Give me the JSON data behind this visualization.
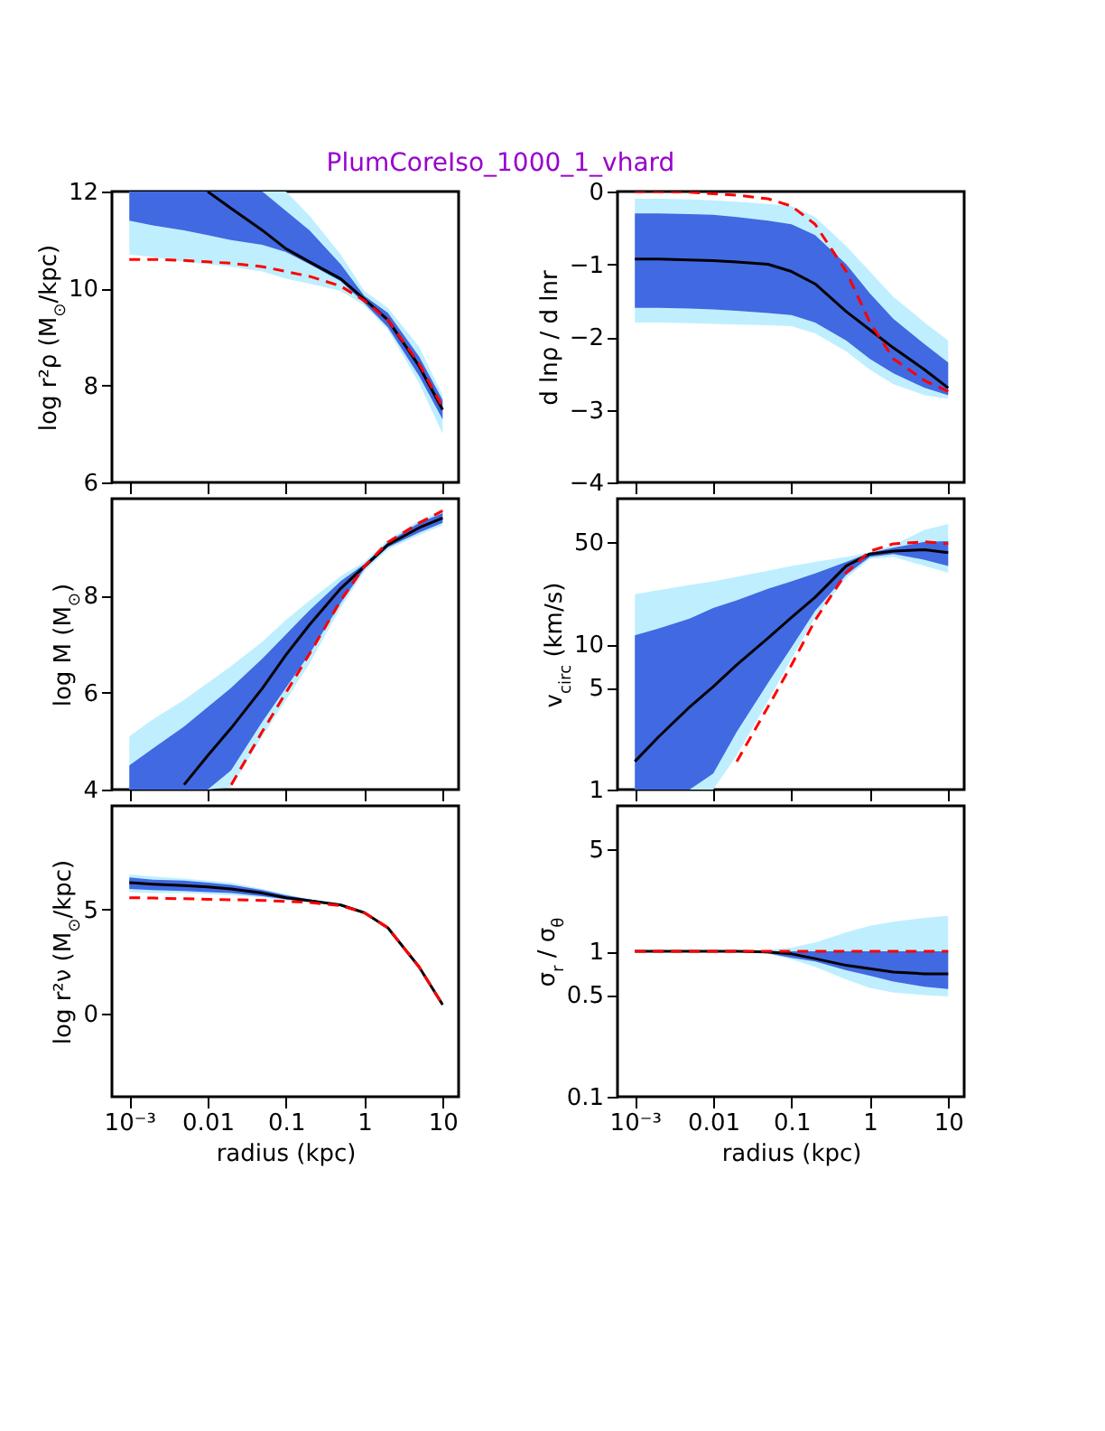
{
  "chart_data": [
    {
      "type": "line",
      "title": "PlumCoreIso_1000_1_vhard",
      "ylabel": "log r²ρ (M$_{⊙}$/kpc)",
      "log": "x",
      "tick_labels": "y",
      "marker": "none",
      "x": [
        0.001,
        0.002,
        0.005,
        0.01,
        0.02,
        0.05,
        0.1,
        0.2,
        0.5,
        1,
        2,
        5,
        10
      ],
      "xlim": [
        0.0006,
        16
      ],
      "xticks": [
        0.001,
        0.01,
        0.1,
        1,
        10
      ],
      "ylim": [
        6,
        12
      ],
      "yticks": [
        6,
        8,
        10,
        12
      ],
      "series": [
        {
          "color": "#bfefff",
          "values": [
            null,
            null,
            null,
            null,
            null,
            null,
            null,
            null,
            null,
            null,
            null,
            null,
            null
          ],
          "lower": [
            10.7,
            10.65,
            10.55,
            10.5,
            10.45,
            10.35,
            10.2,
            10.1,
            9.95,
            9.65,
            9.15,
            8.05,
            7.0
          ],
          "upper": [
            12,
            12,
            12,
            12,
            12,
            12,
            12,
            11.5,
            10.7,
            9.95,
            9.6,
            8.8,
            7.8
          ]
        },
        {
          "color": "#4169e1",
          "values": [
            null,
            null,
            null,
            null,
            null,
            null,
            null,
            null,
            null,
            null,
            null,
            null,
            null
          ],
          "lower": [
            11.4,
            11.3,
            11.2,
            11.1,
            11.0,
            10.9,
            10.75,
            10.5,
            10.15,
            9.7,
            9.2,
            8.2,
            7.3
          ],
          "upper": [
            12,
            12,
            12,
            12,
            12,
            12,
            11.6,
            11.2,
            10.5,
            9.85,
            9.5,
            8.6,
            7.7
          ]
        },
        {
          "type": "line",
          "color": "#000000",
          "line_style": "solid",
          "values": [
            null,
            null,
            null,
            12.0,
            11.65,
            11.2,
            10.82,
            10.55,
            10.2,
            9.78,
            9.35,
            8.4,
            7.5
          ]
        },
        {
          "type": "line",
          "color": "#ff0000",
          "line_style": "dashed",
          "values": [
            10.6,
            10.6,
            10.58,
            10.55,
            10.52,
            10.45,
            10.35,
            10.25,
            10.05,
            9.75,
            9.35,
            8.45,
            7.55
          ]
        }
      ]
    },
    {
      "type": "line",
      "ylabel": "d lnρ / d lnr",
      "log": "x",
      "tick_labels": "y",
      "marker": "none",
      "x": [
        0.001,
        0.002,
        0.005,
        0.01,
        0.02,
        0.05,
        0.1,
        0.2,
        0.5,
        1,
        2,
        5,
        10
      ],
      "xlim": [
        0.0006,
        16
      ],
      "xticks": [
        0.001,
        0.01,
        0.1,
        1,
        10
      ],
      "ylim": [
        -4,
        0
      ],
      "yticks": [
        -4,
        -3,
        -2,
        -1,
        0
      ],
      "series": [
        {
          "color": "#bfefff",
          "values": [
            null,
            null,
            null,
            null,
            null,
            null,
            null,
            null,
            null,
            null,
            null,
            null,
            null
          ],
          "lower": [
            -1.8,
            -1.8,
            -1.81,
            -1.82,
            -1.83,
            -1.84,
            -1.85,
            -1.95,
            -2.2,
            -2.45,
            -2.65,
            -2.8,
            -2.85
          ],
          "upper": [
            -0.1,
            -0.1,
            -0.11,
            -0.12,
            -0.14,
            -0.17,
            -0.2,
            -0.35,
            -0.75,
            -1.1,
            -1.45,
            -1.8,
            -2.05
          ]
        },
        {
          "color": "#4169e1",
          "values": [
            null,
            null,
            null,
            null,
            null,
            null,
            null,
            null,
            null,
            null,
            null,
            null,
            null
          ],
          "lower": [
            -1.6,
            -1.6,
            -1.61,
            -1.62,
            -1.64,
            -1.67,
            -1.7,
            -1.8,
            -2.05,
            -2.3,
            -2.5,
            -2.7,
            -2.8
          ],
          "upper": [
            -0.3,
            -0.3,
            -0.31,
            -0.32,
            -0.35,
            -0.4,
            -0.45,
            -0.6,
            -1.0,
            -1.4,
            -1.75,
            -2.1,
            -2.35
          ]
        },
        {
          "type": "line",
          "color": "#000000",
          "line_style": "solid",
          "values": [
            -0.93,
            -0.93,
            -0.94,
            -0.95,
            -0.97,
            -1.0,
            -1.1,
            -1.27,
            -1.65,
            -1.9,
            -2.15,
            -2.45,
            -2.7
          ]
        },
        {
          "type": "line",
          "color": "#ff0000",
          "line_style": "dashed",
          "values": [
            0,
            0,
            -0.01,
            -0.03,
            -0.05,
            -0.1,
            -0.2,
            -0.45,
            -1.1,
            -1.8,
            -2.3,
            -2.6,
            -2.75
          ]
        }
      ]
    },
    {
      "type": "line",
      "ylabel": "log M (M$_{⊙}$)",
      "log": "x",
      "tick_labels": "y",
      "marker": "none",
      "x": [
        0.001,
        0.002,
        0.005,
        0.01,
        0.02,
        0.05,
        0.1,
        0.2,
        0.5,
        1,
        2,
        5,
        10
      ],
      "xlim": [
        0.0006,
        16
      ],
      "xticks": [
        0.001,
        0.01,
        0.1,
        1,
        10
      ],
      "ylim": [
        4,
        10
      ],
      "yticks": [
        4,
        6,
        8
      ],
      "series": [
        {
          "color": "#bfefff",
          "values": [
            null,
            null,
            null,
            null,
            null,
            null,
            null,
            null,
            null,
            null,
            null,
            null,
            null
          ],
          "lower": [
            4,
            4,
            4,
            4,
            4.05,
            5.1,
            5.85,
            6.6,
            7.75,
            8.5,
            8.95,
            9.25,
            9.45
          ],
          "upper": [
            5.1,
            5.45,
            5.85,
            6.2,
            6.55,
            7.05,
            7.5,
            7.9,
            8.4,
            8.7,
            9.15,
            9.55,
            9.75
          ]
        },
        {
          "color": "#4169e1",
          "values": [
            null,
            null,
            null,
            null,
            null,
            null,
            null,
            null,
            null,
            null,
            null,
            null,
            null
          ],
          "lower": [
            4,
            4,
            4,
            4,
            4.4,
            5.4,
            6.1,
            6.8,
            7.85,
            8.55,
            9.0,
            9.3,
            9.5
          ],
          "upper": [
            4.5,
            4.85,
            5.3,
            5.7,
            6.1,
            6.7,
            7.2,
            7.7,
            8.3,
            8.65,
            9.1,
            9.5,
            9.7
          ]
        },
        {
          "type": "line",
          "color": "#000000",
          "line_style": "solid",
          "values": [
            null,
            null,
            4.1,
            4.7,
            5.27,
            6.09,
            6.78,
            7.4,
            8.15,
            8.6,
            9.05,
            9.4,
            9.6
          ]
        },
        {
          "type": "line",
          "color": "#ff0000",
          "line_style": "dashed",
          "values": [
            null,
            null,
            null,
            null,
            4.1,
            5.2,
            6.0,
            6.8,
            7.9,
            8.6,
            9.1,
            9.5,
            9.75
          ]
        }
      ]
    },
    {
      "type": "line",
      "ylabel": "v$_{circ}$ (km/s)",
      "log": "xy",
      "tick_labels": "y",
      "marker": "none",
      "x": [
        0.001,
        0.002,
        0.005,
        0.01,
        0.02,
        0.05,
        0.1,
        0.2,
        0.5,
        1,
        2,
        5,
        10
      ],
      "xlim": [
        0.0006,
        16
      ],
      "xticks": [
        0.001,
        0.01,
        0.1,
        1,
        10
      ],
      "ylim": [
        1,
        100
      ],
      "yticks": [
        1,
        5,
        10,
        50
      ],
      "series": [
        {
          "color": "#bfefff",
          "values": [
            null,
            null,
            null,
            null,
            null,
            null,
            null,
            null,
            null,
            null,
            null,
            null,
            null
          ],
          "lower": [
            1,
            1,
            1,
            1,
            1.72,
            4.05,
            7.9,
            15.3,
            28.4,
            38.5,
            39.7,
            34.5,
            31
          ],
          "upper": [
            22,
            23.5,
            25.5,
            27,
            29,
            32,
            34.5,
            36.7,
            39.7,
            42.8,
            48,
            61,
            67
          ]
        },
        {
          "color": "#4169e1",
          "values": [
            null,
            null,
            null,
            null,
            null,
            null,
            null,
            null,
            null,
            null,
            null,
            null,
            null
          ],
          "lower": [
            1,
            1,
            1,
            1.29,
            2.5,
            5.4,
            9.5,
            16.9,
            30,
            39.7,
            41.7,
            38,
            34.5
          ],
          "upper": [
            11.5,
            12.8,
            15,
            17.7,
            20,
            24,
            27,
            30.6,
            36.7,
            42.5,
            46,
            50.5,
            51
          ]
        },
        {
          "type": "line",
          "color": "#000000",
          "line_style": "solid",
          "values": [
            1.56,
            2.3,
            3.7,
            5.1,
            7.2,
            11,
            15.3,
            21,
            34.5,
            41.7,
            43.6,
            44.6,
            42.5
          ]
        },
        {
          "type": "line",
          "color": "#ff0000",
          "line_style": "dashed",
          "values": [
            null,
            null,
            null,
            null,
            1.56,
            3.7,
            7.2,
            14.6,
            31,
            43.6,
            49,
            50.5,
            49
          ]
        }
      ]
    },
    {
      "type": "line",
      "ylabel": "log r²ν (M$_{⊙}$/kpc)",
      "xlabel": "radius (kpc)",
      "log": "x",
      "marker": "none",
      "x": [
        0.001,
        0.002,
        0.005,
        0.01,
        0.02,
        0.05,
        0.1,
        0.2,
        0.5,
        1,
        2,
        5,
        10
      ],
      "xlim": [
        0.0006,
        16
      ],
      "xticks": [
        {
          "value": 0.001,
          "label": "10⁻³"
        },
        0.01,
        0.1,
        1,
        10
      ],
      "ylim": [
        -4,
        10
      ],
      "yticks": [
        0,
        5
      ],
      "series": [
        {
          "color": "#bfefff",
          "values": [
            null,
            null,
            null,
            null,
            null,
            null,
            null,
            null,
            null,
            null,
            null,
            null,
            null
          ],
          "lower": [
            5.85,
            5.8,
            5.8,
            5.75,
            5.7,
            5.6,
            5.45,
            5.35,
            5.2,
            4.8,
            4.1,
            2.2,
            0.4
          ],
          "upper": [
            6.7,
            6.6,
            6.5,
            6.4,
            6.3,
            6.0,
            5.75,
            5.5,
            5.3,
            4.9,
            4.2,
            2.3,
            0.5
          ]
        },
        {
          "color": "#4169e1",
          "values": [
            null,
            null,
            null,
            null,
            null,
            null,
            null,
            null,
            null,
            null,
            null,
            null,
            null
          ],
          "lower": [
            6.0,
            5.95,
            5.9,
            5.85,
            5.8,
            5.65,
            5.5,
            5.4,
            5.2,
            4.8,
            4.1,
            2.2,
            0.4
          ],
          "upper": [
            6.55,
            6.45,
            6.4,
            6.3,
            6.2,
            5.95,
            5.7,
            5.5,
            5.25,
            4.9,
            4.15,
            2.3,
            0.45
          ]
        },
        {
          "type": "line",
          "color": "#000000",
          "line_style": "solid",
          "values": [
            6.3,
            6.23,
            6.16,
            6.1,
            6.0,
            5.8,
            5.58,
            5.43,
            5.23,
            4.86,
            4.13,
            2.25,
            0.43
          ]
        },
        {
          "type": "line",
          "color": "#ff0000",
          "line_style": "dashed",
          "values": [
            5.58,
            5.56,
            5.53,
            5.5,
            5.48,
            5.45,
            5.4,
            5.35,
            5.2,
            4.86,
            4.13,
            2.25,
            0.43
          ]
        }
      ]
    },
    {
      "type": "line",
      "ylabel": "σ$_{r}$ / σ$_{θ}$",
      "xlabel": "radius (kpc)",
      "log": "xy",
      "marker": "none",
      "x": [
        0.001,
        0.002,
        0.005,
        0.01,
        0.02,
        0.05,
        0.1,
        0.2,
        0.5,
        1,
        2,
        5,
        10
      ],
      "xlim": [
        0.0006,
        16
      ],
      "xticks": [
        {
          "value": 0.001,
          "label": "10⁻³"
        },
        0.01,
        0.1,
        1,
        10
      ],
      "ylim": [
        0.1,
        10
      ],
      "yticks": [
        0.1,
        0.5,
        1,
        5
      ],
      "series": [
        {
          "color": "#bfefff",
          "values": [
            null,
            null,
            null,
            null,
            null,
            null,
            null,
            null,
            null,
            null,
            null,
            null,
            null
          ],
          "lower": [
            1,
            1,
            1,
            1,
            0.99,
            0.96,
            0.88,
            0.78,
            0.64,
            0.56,
            0.52,
            0.5,
            0.49
          ],
          "upper": [
            1,
            1,
            1,
            1,
            1.01,
            1.02,
            1.06,
            1.15,
            1.35,
            1.5,
            1.6,
            1.7,
            1.75
          ]
        },
        {
          "color": "#4169e1",
          "values": [
            null,
            null,
            null,
            null,
            null,
            null,
            null,
            null,
            null,
            null,
            null,
            null,
            null
          ],
          "lower": [
            1,
            1,
            1,
            1,
            0.99,
            0.97,
            0.9,
            0.85,
            0.74,
            0.68,
            0.62,
            0.57,
            0.55
          ],
          "upper": [
            1,
            1,
            1,
            1,
            1,
            1,
            1,
            1,
            1,
            1,
            1,
            1,
            1
          ]
        },
        {
          "type": "line",
          "color": "#000000",
          "line_style": "solid",
          "values": [
            1,
            1,
            1,
            1,
            1,
            0.99,
            0.96,
            0.89,
            0.8,
            0.76,
            0.72,
            0.7,
            0.7
          ]
        },
        {
          "type": "line",
          "color": "#ff0000",
          "line_style": "dashed",
          "values": [
            1,
            1,
            1,
            1,
            1,
            1,
            1,
            1,
            1,
            1,
            1,
            1,
            1
          ]
        }
      ]
    }
  ]
}
